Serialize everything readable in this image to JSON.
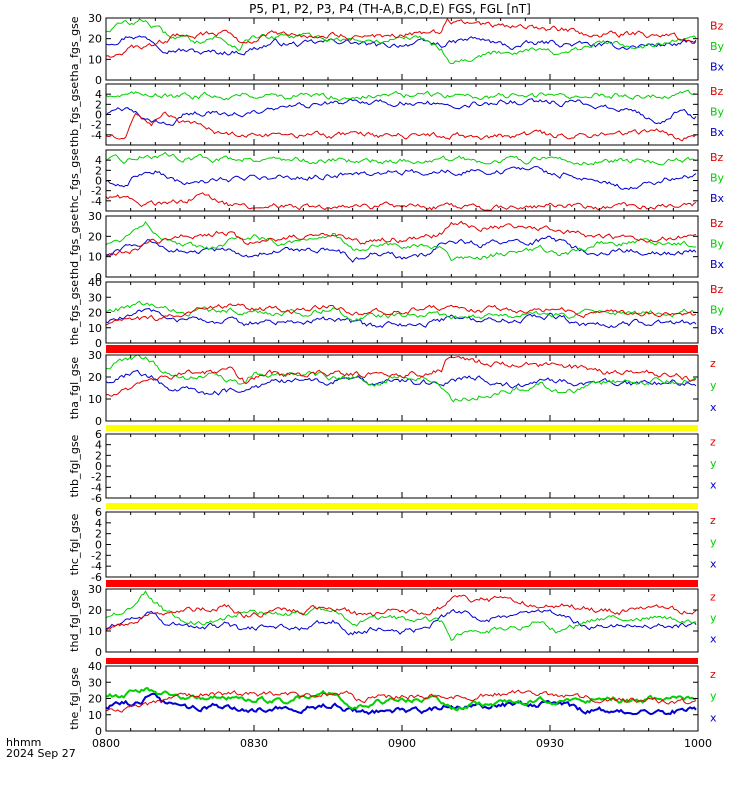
{
  "title": "P5, P1, P2, P3, P4 (TH-A,B,C,D,E) FGS, FGL [nT]",
  "time_axis": {
    "unit_label": "hhmm",
    "date_label": "2024 Sep 27",
    "ticks": [
      "0800",
      "0830",
      "0900",
      "0930",
      "1000"
    ],
    "start_min": 0,
    "end_min": 120
  },
  "colors": {
    "z": "#e00000",
    "y": "#00d000",
    "x": "#0000d0",
    "frame": "#000000",
    "bar_red": "#ff0000",
    "bar_yellow": "#ffff00"
  },
  "chart_data": [
    {
      "id": "tha_fgs_gse",
      "type": "line",
      "ylabel": "tha_fgs_gse",
      "ylim": [
        0,
        30
      ],
      "yticks": [
        "0",
        "10",
        "20",
        "30"
      ],
      "legend": [
        "Bz",
        "By",
        "Bx"
      ],
      "shape": "A",
      "has_data": true
    },
    {
      "id": "thb_fgs_gse",
      "type": "line",
      "ylabel": "thb_fgs_gse",
      "ylim": [
        -6,
        6
      ],
      "yticks": [
        "-4",
        "-2",
        "0",
        "2",
        "4"
      ],
      "legend": [
        "Bz",
        "By",
        "Bx"
      ],
      "shape": "B",
      "has_data": true
    },
    {
      "id": "thc_fgs_gse",
      "type": "line",
      "ylabel": "thc_fgs_gse",
      "ylim": [
        -6,
        6
      ],
      "yticks": [
        "-4",
        "-2",
        "0",
        "2",
        "4"
      ],
      "legend": [
        "Bz",
        "By",
        "Bx"
      ],
      "shape": "C",
      "has_data": true
    },
    {
      "id": "thd_fgs_gse",
      "type": "line",
      "ylabel": "thd_fgs_gse",
      "ylim": [
        0,
        30
      ],
      "yticks": [
        "0",
        "10",
        "20",
        "30"
      ],
      "legend": [
        "Bz",
        "By",
        "Bx"
      ],
      "shape": "D",
      "has_data": true
    },
    {
      "id": "the_fgs_gse",
      "type": "line",
      "ylabel": "the_fgs_gse",
      "ylim": [
        0,
        40
      ],
      "yticks": [
        "0",
        "10",
        "20",
        "30",
        "40"
      ],
      "legend": [
        "Bz",
        "By",
        "Bx"
      ],
      "shape": "E",
      "has_data": true
    },
    {
      "id": "tha_fgl_gse",
      "type": "line",
      "ylabel": "tha_fgl_gse",
      "ylim": [
        0,
        30
      ],
      "yticks": [
        "0",
        "10",
        "20",
        "30"
      ],
      "legend": [
        "z",
        "y",
        "x"
      ],
      "shape": "A",
      "has_data": true
    },
    {
      "id": "thb_fgl_gse",
      "type": "line",
      "ylabel": "thb_fgl_gse",
      "ylim": [
        -6,
        6
      ],
      "yticks": [
        "-6",
        "-4",
        "-2",
        "0",
        "2",
        "4",
        "6"
      ],
      "legend": [
        "z",
        "y",
        "x"
      ],
      "shape": "none",
      "has_data": false
    },
    {
      "id": "thc_fgl_gse",
      "type": "line",
      "ylabel": "thc_fgl_gse",
      "ylim": [
        -6,
        6
      ],
      "yticks": [
        "-6",
        "-4",
        "-2",
        "0",
        "2",
        "4",
        "6"
      ],
      "legend": [
        "z",
        "y",
        "x"
      ],
      "shape": "none",
      "has_data": false
    },
    {
      "id": "thd_fgl_gse",
      "type": "line",
      "ylabel": "thd_fgl_gse",
      "ylim": [
        0,
        30
      ],
      "yticks": [
        "0",
        "10",
        "20",
        "30"
      ],
      "legend": [
        "z",
        "y",
        "x"
      ],
      "shape": "D",
      "has_data": true
    },
    {
      "id": "the_fgl_gse",
      "type": "line",
      "ylabel": "the_fgl_gse",
      "ylim": [
        0,
        40
      ],
      "yticks": [
        "0",
        "10",
        "20",
        "30",
        "40"
      ],
      "legend": [
        "z",
        "y",
        "x"
      ],
      "shape": "E",
      "has_data": true
    }
  ],
  "status_bars": [
    {
      "before_panel": 5,
      "color": "bar_red"
    },
    {
      "before_panel": 6,
      "color": "bar_yellow"
    },
    {
      "before_panel": 7,
      "color": "bar_yellow"
    },
    {
      "before_panel": 8,
      "color": "bar_red"
    },
    {
      "before_panel": 9,
      "color": "bar_red"
    }
  ]
}
